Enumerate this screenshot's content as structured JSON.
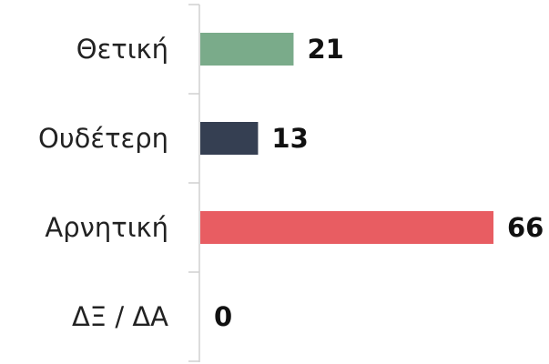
{
  "chart_data": {
    "type": "barh",
    "categories": [
      "Θετική",
      "Ουδέτερη",
      "Αρνητική",
      "ΔΞ / ΔΑ"
    ],
    "values": [
      21,
      13,
      66,
      0
    ],
    "colors": [
      "#7aab8a",
      "#353f52",
      "#e85d62",
      "#999999"
    ]
  }
}
